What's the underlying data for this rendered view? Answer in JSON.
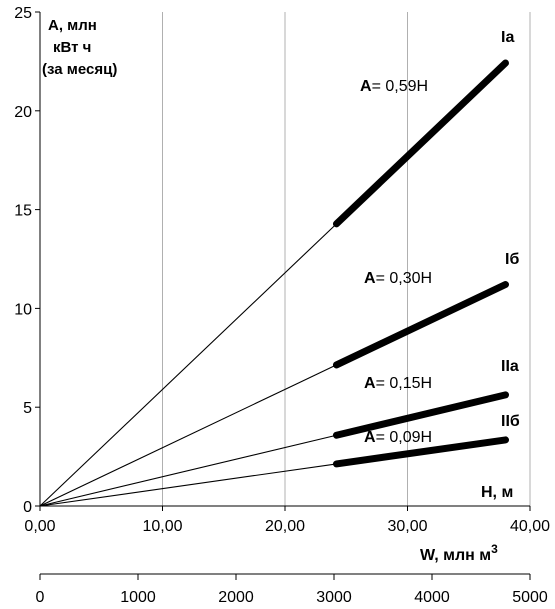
{
  "chart_data": {
    "type": "line",
    "ylabel_lines": [
      "A, млн",
      "кВт ч",
      "(за месяц)"
    ],
    "x_axis_inner_label": "H, м",
    "xlabel": "W, млн м",
    "xlabel_superscript": "3",
    "xlim": [
      0,
      40
    ],
    "ylim": [
      0,
      25
    ],
    "x_ticks": [
      "0,00",
      "10,00",
      "20,00",
      "30,00",
      "40,00"
    ],
    "y_ticks": [
      "0",
      "5",
      "10",
      "15",
      "20",
      "25"
    ],
    "secondary_x_axis": {
      "range": [
        0,
        5000
      ],
      "ticks": [
        "0",
        "1000",
        "2000",
        "3000",
        "4000",
        "5000"
      ]
    },
    "grid": {
      "vertical": true,
      "horizontal": false
    },
    "series": [
      {
        "name": "Ia",
        "equation_prefix": "A",
        "equation_rest": "= 0,59H",
        "coef": 0.59,
        "x_end": 38.0,
        "thick_from": 24.2,
        "color": "#000000"
      },
      {
        "name": "Iб",
        "equation_prefix": "A",
        "equation_rest": "= 0,30H",
        "coef": 0.295,
        "x_end": 38.0,
        "thick_from": 24.2,
        "color": "#000000"
      },
      {
        "name": "IIа",
        "equation_prefix": "A",
        "equation_rest": "= 0,15H",
        "coef": 0.148,
        "x_end": 38.0,
        "thick_from": 24.2,
        "color": "#000000"
      },
      {
        "name": "IIб",
        "equation_prefix": "A",
        "equation_rest": "= 0,09H",
        "coef": 0.088,
        "x_end": 38.0,
        "thick_from": 24.2,
        "color": "#000000"
      }
    ]
  }
}
